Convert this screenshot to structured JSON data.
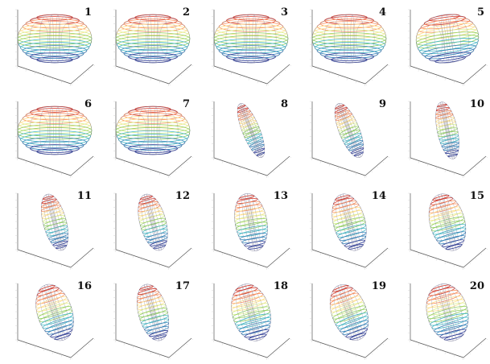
{
  "figure": {
    "panels": [
      {
        "label": "1",
        "shape": "oblate",
        "tilt_deg": 0,
        "aspect": 1.6
      },
      {
        "label": "2",
        "shape": "oblate",
        "tilt_deg": 0,
        "aspect": 1.65
      },
      {
        "label": "3",
        "shape": "oblate",
        "tilt_deg": 0,
        "aspect": 1.6
      },
      {
        "label": "4",
        "shape": "oblate",
        "tilt_deg": 0,
        "aspect": 1.55
      },
      {
        "label": "5",
        "shape": "oblate",
        "tilt_deg": -8,
        "aspect": 1.3
      },
      {
        "label": "6",
        "shape": "oblate",
        "tilt_deg": 0,
        "aspect": 1.55
      },
      {
        "label": "7",
        "shape": "oblate",
        "tilt_deg": 0,
        "aspect": 1.6
      },
      {
        "label": "8",
        "shape": "prolate",
        "tilt_deg": -22,
        "aspect": 0.3
      },
      {
        "label": "9",
        "shape": "prolate",
        "tilt_deg": -22,
        "aspect": 0.35
      },
      {
        "label": "10",
        "shape": "prolate",
        "tilt_deg": -12,
        "aspect": 0.35
      },
      {
        "label": "11",
        "shape": "prolate",
        "tilt_deg": -15,
        "aspect": 0.4
      },
      {
        "label": "12",
        "shape": "prolate",
        "tilt_deg": -15,
        "aspect": 0.45
      },
      {
        "label": "13",
        "shape": "prolate",
        "tilt_deg": -10,
        "aspect": 0.55
      },
      {
        "label": "14",
        "shape": "prolate",
        "tilt_deg": -15,
        "aspect": 0.55
      },
      {
        "label": "15",
        "shape": "prolate",
        "tilt_deg": -15,
        "aspect": 0.6
      },
      {
        "label": "16",
        "shape": "prolate",
        "tilt_deg": -18,
        "aspect": 0.6
      },
      {
        "label": "17",
        "shape": "prolate",
        "tilt_deg": -15,
        "aspect": 0.5
      },
      {
        "label": "18",
        "shape": "prolate",
        "tilt_deg": -15,
        "aspect": 0.65
      },
      {
        "label": "19",
        "shape": "prolate",
        "tilt_deg": -20,
        "aspect": 0.6
      },
      {
        "label": "20",
        "shape": "prolate",
        "tilt_deg": -15,
        "aspect": 0.7
      }
    ],
    "colormap": [
      "#7f0000",
      "#d7301f",
      "#fc8d59",
      "#fee08b",
      "#d9ef8b",
      "#91cf60",
      "#41b6c4",
      "#2c7fb8",
      "#253494",
      "#3f007d"
    ],
    "axis_color": "#555555",
    "grid_color": "#cccccc"
  }
}
